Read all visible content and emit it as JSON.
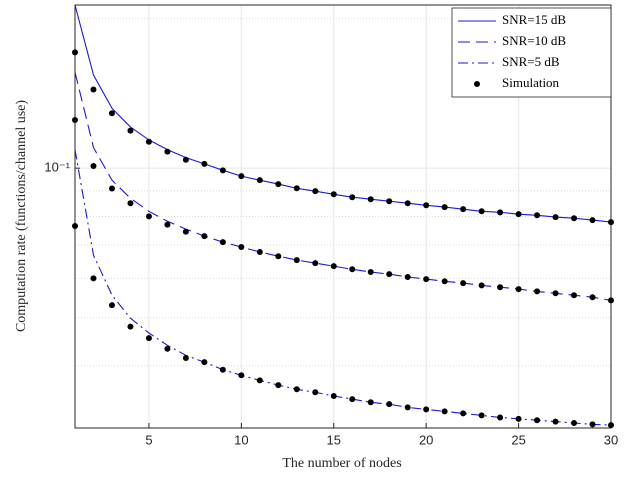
{
  "chart_data": {
    "type": "line",
    "xlabel": "The number of nodes",
    "ylabel": "Computation rate (functions/channel use)",
    "x": [
      1,
      2,
      3,
      4,
      5,
      6,
      7,
      8,
      9,
      10,
      11,
      12,
      13,
      14,
      15,
      16,
      17,
      18,
      19,
      20,
      21,
      22,
      23,
      24,
      25,
      26,
      27,
      28,
      29,
      30
    ],
    "series": [
      {
        "name": "SNR=15 dB",
        "color": "#1a1ad6",
        "dash": "solid",
        "values": [
          0.213,
          0.154,
          0.132,
          0.121,
          0.114,
          0.109,
          0.105,
          0.102,
          0.099,
          0.0964,
          0.0946,
          0.0929,
          0.0911,
          0.0899,
          0.0886,
          0.0874,
          0.0866,
          0.0858,
          0.085,
          0.0842,
          0.0835,
          0.0827,
          0.0819,
          0.0815,
          0.0808,
          0.0804,
          0.0797,
          0.0793,
          0.0786,
          0.0779
        ]
      },
      {
        "name": "SNR=10 dB",
        "color": "#1a1ad6",
        "dash": "dashed",
        "values": [
          0.156,
          0.11,
          0.0946,
          0.087,
          0.0819,
          0.0782,
          0.0754,
          0.073,
          0.071,
          0.0694,
          0.0678,
          0.0665,
          0.0653,
          0.0644,
          0.0635,
          0.0626,
          0.0618,
          0.0612,
          0.0604,
          0.0598,
          0.0592,
          0.0587,
          0.0581,
          0.0576,
          0.0571,
          0.0565,
          0.056,
          0.0555,
          0.055,
          0.0542
        ]
      },
      {
        "name": "SNR=5 dB",
        "color": "#1a1ad6",
        "dash": "dashdot",
        "values": [
          0.109,
          0.0668,
          0.0555,
          0.0499,
          0.0466,
          0.044,
          0.042,
          0.0407,
          0.0393,
          0.0383,
          0.0374,
          0.0366,
          0.0359,
          0.0354,
          0.0348,
          0.0343,
          0.0338,
          0.0335,
          0.033,
          0.0327,
          0.0324,
          0.0321,
          0.0318,
          0.0315,
          0.0313,
          0.0311,
          0.0309,
          0.0307,
          0.0305,
          0.0304
        ]
      }
    ],
    "simulation": {
      "name": "Simulation",
      "color": "#000000",
      "runs": [
        [
          0.171,
          0.144,
          0.129,
          0.119,
          0.113,
          0.108,
          0.104,
          0.102,
          0.099,
          0.0964,
          0.0946,
          0.0929,
          0.0911,
          0.0899,
          0.0886,
          0.0874,
          0.0866,
          0.0858,
          0.085,
          0.0842,
          0.0835,
          0.0827,
          0.0819,
          0.0815,
          0.0808,
          0.0804,
          0.0797,
          0.0793,
          0.0786,
          0.0779
        ],
        [
          0.125,
          0.101,
          0.091,
          0.085,
          0.08,
          0.077,
          0.0745,
          0.073,
          0.071,
          0.0694,
          0.0678,
          0.0665,
          0.0653,
          0.0644,
          0.0635,
          0.0626,
          0.0618,
          0.0612,
          0.0604,
          0.0598,
          0.0592,
          0.0587,
          0.0581,
          0.0576,
          0.0571,
          0.0565,
          0.056,
          0.0555,
          0.055,
          0.0542
        ],
        [
          0.0765,
          0.06,
          0.053,
          0.048,
          0.0455,
          0.0433,
          0.0415,
          0.0407,
          0.0393,
          0.0383,
          0.0374,
          0.0366,
          0.0359,
          0.0354,
          0.0348,
          0.0343,
          0.0338,
          0.0335,
          0.033,
          0.0327,
          0.0324,
          0.0321,
          0.0318,
          0.0315,
          0.0313,
          0.0311,
          0.0309,
          0.0307,
          0.0305,
          0.0304
        ]
      ]
    },
    "xlim": [
      1,
      30
    ],
    "xticks": [
      5,
      10,
      15,
      20,
      25,
      30
    ],
    "ylim": [
      0.03,
      0.213
    ],
    "ylog": true,
    "yticks": [
      {
        "value": 0.1,
        "label": "10⁻¹"
      }
    ],
    "yminor": [
      0.03,
      0.04,
      0.05,
      0.06,
      0.07,
      0.08,
      0.09,
      0.2
    ],
    "grid": true,
    "legend": "upper right"
  }
}
